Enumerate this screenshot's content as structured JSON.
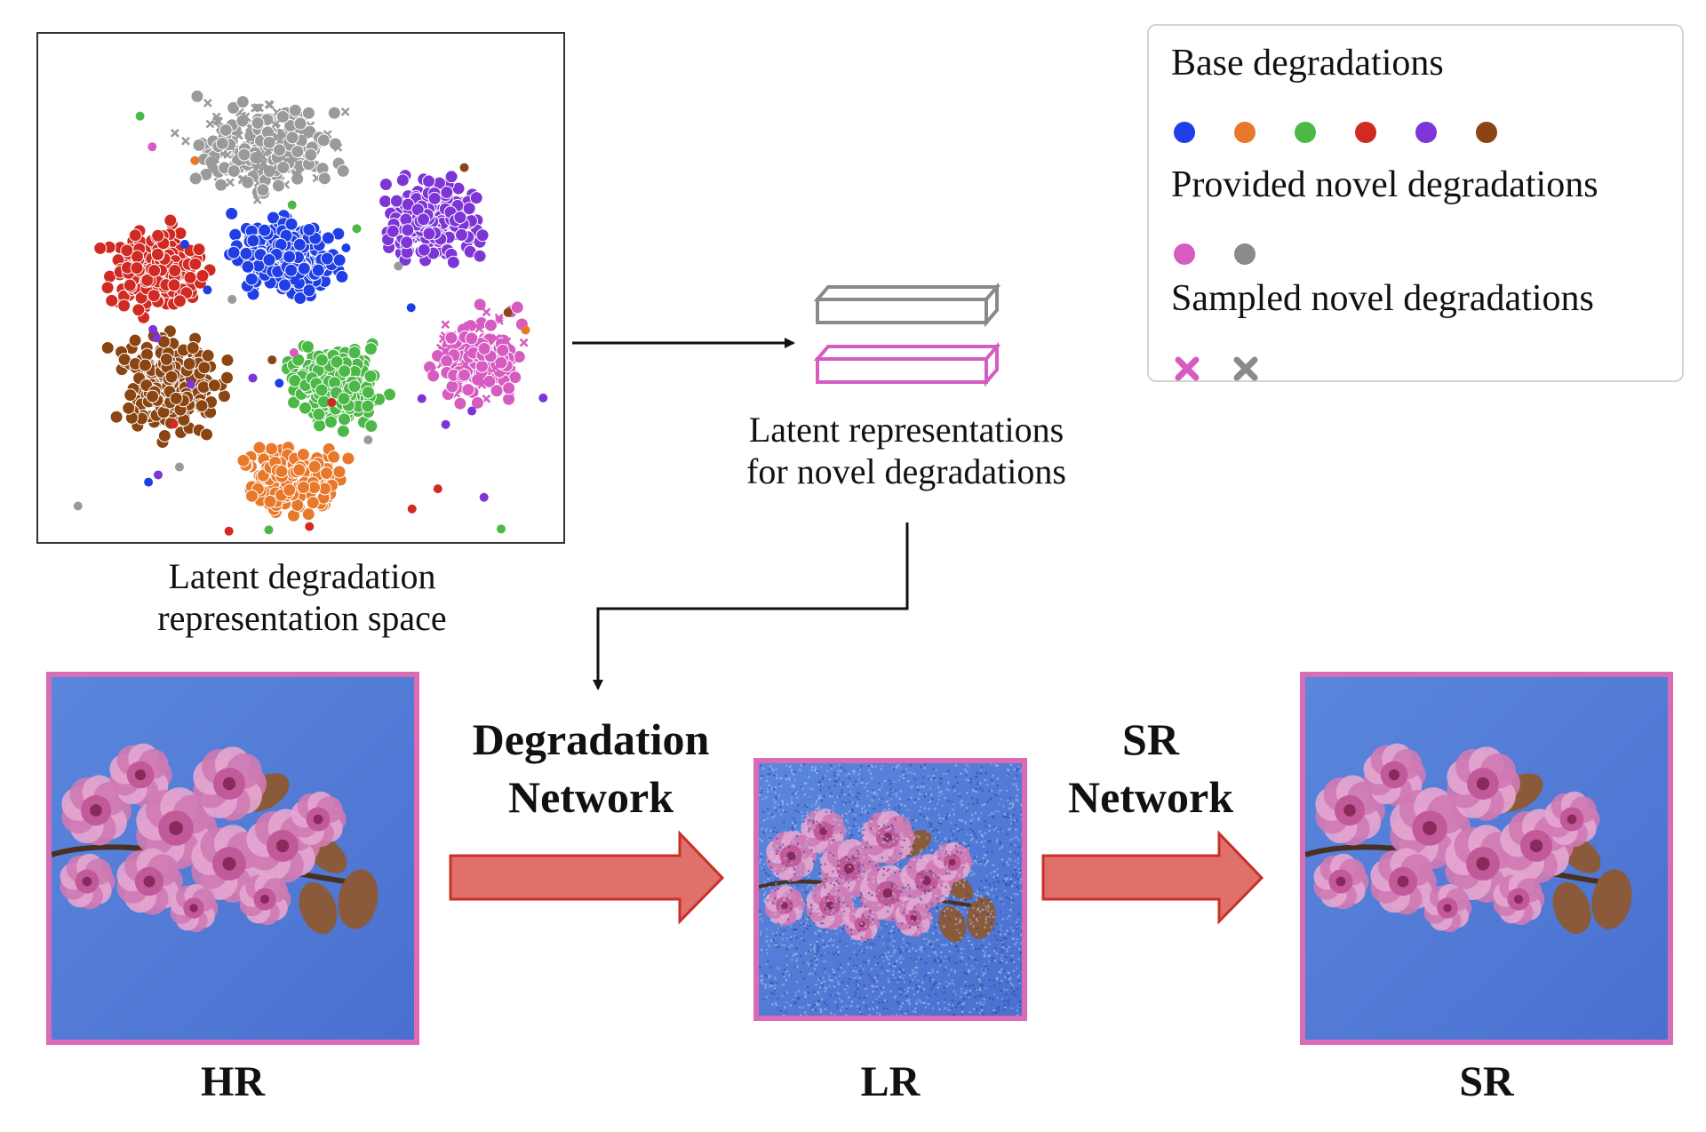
{
  "scatter": {
    "caption_line1": "Latent degradation",
    "caption_line2": "representation space",
    "clusters": [
      {
        "color": "#1f3ee6",
        "marker": "dot"
      },
      {
        "color": "#e8792a",
        "marker": "dot"
      },
      {
        "color": "#4cb847",
        "marker": "dot"
      },
      {
        "color": "#d12a22",
        "marker": "dot"
      },
      {
        "color": "#7d35d6",
        "marker": "dot"
      },
      {
        "color": "#8b4513",
        "marker": "dot"
      },
      {
        "color": "#d65cc2",
        "marker": "dot"
      },
      {
        "color": "#9a9a9a",
        "marker": "dot"
      }
    ]
  },
  "latent": {
    "caption_line1": "Latent representations",
    "caption_line2": "for novel degradations",
    "bar_colors": [
      "#8a8a8a",
      "#d65cc2"
    ]
  },
  "legend": {
    "base_title": "Base degradations",
    "base_colors": [
      "#1f3ee6",
      "#e8792a",
      "#4cb847",
      "#d12a22",
      "#7d35d6",
      "#8b4513"
    ],
    "provided_title": "Provided novel degradations",
    "provided_colors": [
      "#d65cc2",
      "#8a8a8a"
    ],
    "sampled_title": "Sampled novel degradations",
    "sampled_colors": [
      "#d65cc2",
      "#8a8a8a"
    ]
  },
  "pipeline": {
    "hr_label": "HR",
    "lr_label": "LR",
    "sr_label": "SR",
    "degradation_net_line1": "Degradation",
    "degradation_net_line2": "Network",
    "sr_net_line1": "SR",
    "sr_net_line2": "Network",
    "arrow_fill": "#e0706a",
    "arrow_stroke": "#c8302a",
    "frame_color": "#d96cb5",
    "sky_color": "#4a70d0",
    "blossom_color": "#c25a9a"
  }
}
